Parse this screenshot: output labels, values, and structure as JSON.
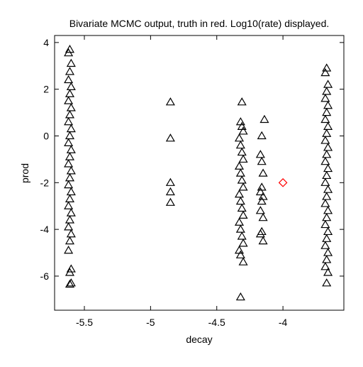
{
  "chart_data": {
    "type": "scatter",
    "title": "Bivariate MCMC output, truth in red. Log10(rate) displayed.",
    "xlabel": "decay",
    "ylabel": "prod",
    "xlim": [
      -5.725,
      -3.54
    ],
    "ylim": [
      -7.46,
      4.3
    ],
    "xticks": [
      -5.5,
      -5,
      -4.5,
      -4
    ],
    "yticks": [
      -6,
      -4,
      -2,
      0,
      2,
      4
    ],
    "series": [
      {
        "color": "#000000",
        "marker": "triangle",
        "x": [
          -5.61,
          -5.62,
          -5.6,
          -5.61,
          -5.62,
          -5.6,
          -5.61,
          -5.62,
          -5.6,
          -5.61,
          -5.62,
          -5.6,
          -5.61,
          -5.62,
          -5.6,
          -5.61,
          -5.62,
          -5.6,
          -5.61,
          -5.62,
          -5.6,
          -5.61,
          -5.62,
          -5.6,
          -5.61,
          -5.62,
          -5.6,
          -5.61,
          -5.62,
          -5.6,
          -5.61,
          -5.6,
          -5.61,
          -4.85,
          -4.85,
          -4.85,
          -4.85,
          -4.85,
          -4.31,
          -4.32,
          -4.31,
          -4.3,
          -4.33,
          -4.32,
          -4.31,
          -4.3,
          -4.33,
          -4.32,
          -4.31,
          -4.3,
          -4.33,
          -4.32,
          -4.31,
          -4.3,
          -4.33,
          -4.32,
          -4.31,
          -4.3,
          -4.33,
          -4.32,
          -4.3,
          -4.32,
          -4.14,
          -4.16,
          -4.17,
          -4.16,
          -4.15,
          -4.16,
          -4.17,
          -4.15,
          -4.16,
          -4.17,
          -4.15,
          -4.16,
          -4.17,
          -4.15,
          -3.67,
          -3.68,
          -3.66,
          -3.67,
          -3.68,
          -3.66,
          -3.67,
          -3.68,
          -3.66,
          -3.67,
          -3.68,
          -3.66,
          -3.67,
          -3.68,
          -3.66,
          -3.67,
          -3.68,
          -3.66,
          -3.67,
          -3.68,
          -3.66,
          -3.67,
          -3.68,
          -3.66,
          -3.67,
          -3.68,
          -3.66,
          -3.67,
          -3.68,
          -3.66,
          -3.67
        ],
        "y": [
          3.7,
          3.55,
          3.1,
          2.75,
          2.4,
          2.1,
          1.8,
          1.5,
          1.2,
          0.9,
          0.6,
          0.3,
          0,
          -0.3,
          -0.6,
          -0.9,
          -1.2,
          -1.5,
          -1.8,
          -2.1,
          -2.4,
          -2.7,
          -3.0,
          -3.3,
          -3.6,
          -3.9,
          -4.2,
          -4.5,
          -4.9,
          -5.7,
          -5.85,
          -6.3,
          -6.35,
          1.45,
          -0.1,
          -2.0,
          -2.4,
          -2.85,
          1.45,
          0.6,
          0.4,
          0.2,
          -0.1,
          -0.4,
          -0.7,
          -1.0,
          -1.3,
          -1.6,
          -1.9,
          -2.2,
          -2.5,
          -2.8,
          -3.1,
          -3.4,
          -3.7,
          -4.0,
          -4.3,
          -4.6,
          -4.9,
          -5.1,
          -5.4,
          -6.9,
          0.7,
          0,
          -0.8,
          -1.1,
          -1.6,
          -2.2,
          -2.4,
          -2.6,
          -2.8,
          -3.2,
          -3.5,
          -4.1,
          -4.2,
          -4.5,
          2.9,
          2.7,
          2.2,
          1.9,
          1.6,
          1.3,
          1.0,
          0.7,
          0.4,
          0.1,
          -0.2,
          -0.5,
          -0.8,
          -1.1,
          -1.4,
          -1.7,
          -2.0,
          -2.3,
          -2.6,
          -2.9,
          -3.2,
          -3.5,
          -3.8,
          -4.1,
          -4.4,
          -4.7,
          -5.0,
          -5.3,
          -5.6,
          -5.85,
          -6.3
        ]
      },
      {
        "color": "#ff0000",
        "marker": "diamond",
        "x": [
          -4.0
        ],
        "y": [
          -2.0
        ]
      }
    ]
  }
}
